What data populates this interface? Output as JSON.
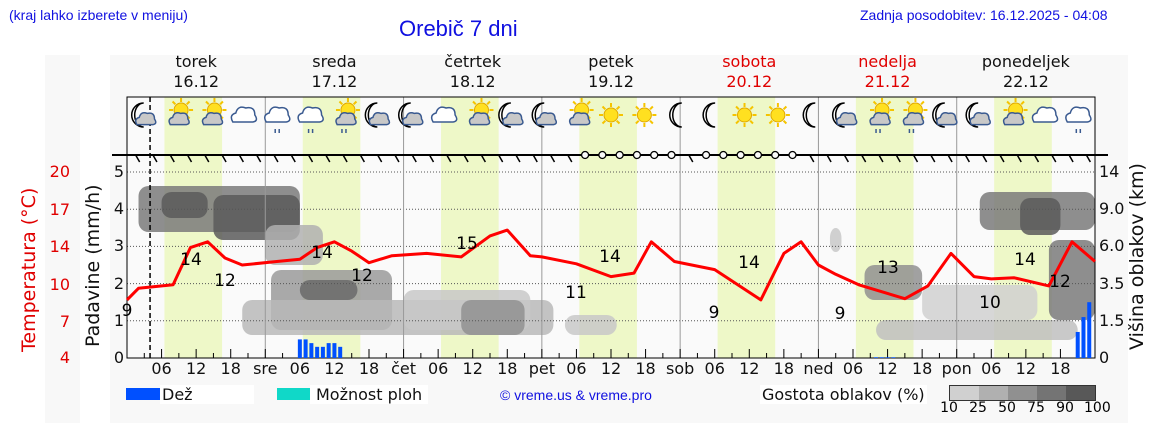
{
  "header": {
    "menu_hint": "(kraj lahko izberete v meniju)",
    "title": "Orebič 7 dni",
    "last_update": "Zadnja posodobitev: 16.12.2025 - 04:08"
  },
  "days": [
    {
      "name": "torek",
      "date": "16.12",
      "weekend": false
    },
    {
      "name": "sreda",
      "date": "17.12",
      "weekend": false
    },
    {
      "name": "četrtek",
      "date": "18.12",
      "weekend": false
    },
    {
      "name": "petek",
      "date": "19.12",
      "weekend": false
    },
    {
      "name": "sobota",
      "date": "20.12",
      "weekend": true
    },
    {
      "name": "nedelja",
      "date": "21.12",
      "weekend": true
    },
    {
      "name": "ponedeljek",
      "date": "22.12",
      "weekend": false
    }
  ],
  "weather_icons": [
    "moon-cloud",
    "sun-small-cloud",
    "sun-cloud",
    "cloud",
    "cloud-rain",
    "cloud-rain",
    "sun-cloud-rain",
    "moon-cloud",
    "moon-cloud",
    "cloud",
    "sun-cloud",
    "moon-cloud",
    "moon-cloud",
    "sun-cloud",
    "sun",
    "sun",
    "moon",
    "moon",
    "sun",
    "sun",
    "moon",
    "moon-cloud",
    "sun-cloud-rain",
    "sun-cloud-rain",
    "moon-cloud",
    "moon-cloud",
    "sun-cloud",
    "cloud",
    "cloud-rain"
  ],
  "axes": {
    "left_temp_label": "Temperatura (°C)",
    "left_temp_ticks": [
      "20",
      "17",
      "14",
      "10",
      "7",
      "4"
    ],
    "left_precip_label": "Padavine (mm/h)",
    "left_precip_ticks": [
      "5",
      "4",
      "3",
      "2",
      "1",
      "0"
    ],
    "right_label": "Višina oblakov (km)",
    "right_ticks": [
      "14",
      "9.0",
      "6.0",
      "3.5",
      "1.5",
      "0"
    ],
    "x_ticks": [
      "06",
      "12",
      "18",
      "sre",
      "06",
      "12",
      "18",
      "čet",
      "06",
      "12",
      "18",
      "pet",
      "06",
      "12",
      "18",
      "sob",
      "06",
      "12",
      "18",
      "ned",
      "06",
      "12",
      "18",
      "pon",
      "06",
      "12",
      "18"
    ]
  },
  "legend": {
    "rain_label": "Dež",
    "rain_color": "#0050ff",
    "showers_label": "Možnost ploh",
    "showers_color": "#10d8c8",
    "credit": "© vreme.us & vreme.pro",
    "cloud_density_label": "Gostota oblakov (%)",
    "cloud_density_ticks": [
      "10",
      "25",
      "50",
      "75",
      "90",
      "100"
    ],
    "cloud_density_colors": [
      "#d0d0d0",
      "#b0b0b0",
      "#909090",
      "#747474",
      "#585858"
    ]
  },
  "chart_data": {
    "type": "line",
    "title": "Orebič 7 dni",
    "xlabel": "",
    "ylabel": "Temperatura (°C) / Padavine (mm/h)",
    "y2label": "Višina oblakov (km)",
    "x_range_hours": [
      0,
      168
    ],
    "now_marker_hours": 4,
    "grid": true,
    "series": [
      {
        "name": "Temperatura (°C)",
        "color": "#ff0000",
        "hours": [
          0,
          2,
          8,
          11,
          14,
          17,
          20,
          26,
          30,
          33,
          36,
          39,
          42,
          46,
          52,
          58,
          63,
          66,
          70,
          72,
          78,
          84,
          88,
          91,
          95,
          98,
          102,
          110,
          114,
          117,
          120,
          123,
          127,
          135,
          139,
          143,
          147,
          150,
          154,
          160,
          164,
          168
        ],
        "values": [
          9,
          10,
          10.3,
          13.5,
          14,
          12.6,
          12,
          12.3,
          12.5,
          13.5,
          14,
          13.2,
          12.2,
          12.8,
          13,
          12.7,
          14.5,
          15,
          12.8,
          12.7,
          12.1,
          11,
          11.3,
          14,
          12.3,
          12,
          11.6,
          9,
          13,
          14,
          12,
          11.2,
          10.3,
          9.1,
          10.2,
          13,
          11,
          10.8,
          10.9,
          10.2,
          14,
          12.3
        ]
      },
      {
        "name": "Dež (mm/h)",
        "color": "#0050ff",
        "hours": [
          30,
          31,
          32,
          33,
          34,
          35,
          36,
          37,
          130,
          131,
          132,
          133,
          165,
          166,
          167
        ],
        "values": [
          0.5,
          0.5,
          0.4,
          0.3,
          0.3,
          0.4,
          0.4,
          0.3,
          0.02,
          0.02,
          0.02,
          0.02,
          0.7,
          1.1,
          1.5
        ]
      }
    ],
    "temperature_labels": [
      {
        "hours": 0,
        "value": 9
      },
      {
        "hours": 11,
        "value": 14
      },
      {
        "hours": 17,
        "value": 12
      },
      {
        "hours": 35,
        "value": 14
      },
      {
        "hours": 41,
        "value": 12
      },
      {
        "hours": 59,
        "value": 15
      },
      {
        "hours": 86,
        "value": 11
      },
      {
        "hours": 84,
        "value": 14
      },
      {
        "hours": 110,
        "value": 9
      },
      {
        "hours": 108,
        "value": 14
      },
      {
        "hours": 134,
        "value": 9
      },
      {
        "hours": 131,
        "value": 13
      },
      {
        "hours": 153,
        "value": 10
      },
      {
        "hours": 157,
        "value": 14
      },
      {
        "hours": 162,
        "value": 12
      }
    ],
    "precip_ylim": [
      0,
      5.5
    ],
    "temp_ylim": [
      4,
      20
    ],
    "cloud_height_ticks_km": [
      0,
      1.5,
      3.5,
      6.0,
      9.0,
      14
    ]
  }
}
